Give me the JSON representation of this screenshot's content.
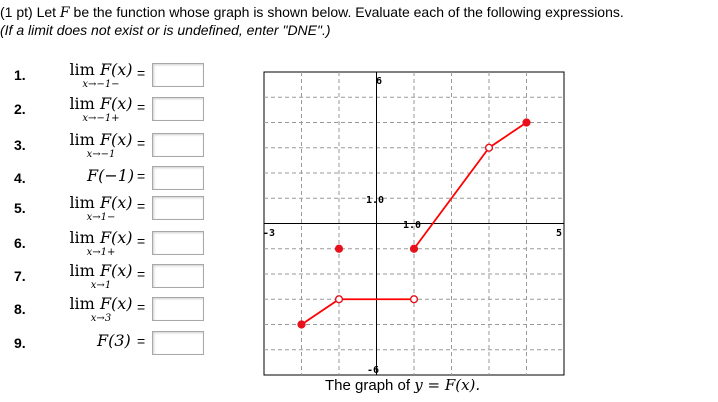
{
  "header": {
    "line1_prefix": "(1 pt) Let",
    "line1_var": "F",
    "line1_suffix": "be the function whose graph is shown below. Evaluate each of the following expressions.",
    "line2": "(If a limit does not exist or is undefined, enter \"DNE\".)"
  },
  "problems": [
    {
      "num": "1.",
      "lim": "lim",
      "func": "F(x)",
      "sub": "x→−1−",
      "eq": "=",
      "answer": ""
    },
    {
      "num": "2.",
      "lim": "lim",
      "func": "F(x)",
      "sub": "x→−1+",
      "eq": "=",
      "answer": ""
    },
    {
      "num": "3.",
      "lim": "lim",
      "func": "F(x)",
      "sub": "x→−1",
      "eq": "=",
      "answer": ""
    },
    {
      "num": "4.",
      "func": "F(−1)",
      "eq": "=",
      "answer": ""
    },
    {
      "num": "5.",
      "lim": "lim",
      "func": "F(x)",
      "sub": "x→1−",
      "eq": "=",
      "answer": ""
    },
    {
      "num": "6.",
      "lim": "lim",
      "func": "F(x)",
      "sub": "x→1+",
      "eq": "=",
      "answer": ""
    },
    {
      "num": "7.",
      "lim": "lim",
      "func": "F(x)",
      "sub": "x→1",
      "eq": "=",
      "answer": ""
    },
    {
      "num": "8.",
      "lim": "lim",
      "func": "F(x)",
      "sub": "x→3",
      "eq": "=",
      "answer": ""
    },
    {
      "num": "9.",
      "func": "F(3)",
      "eq": "=",
      "answer": ""
    }
  ],
  "graph": {
    "caption_prefix": "The graph of",
    "caption_math": "y = F(x).",
    "labels": {
      "xmin": "-3",
      "xmax": "5",
      "ymax": "6",
      "ymin": "-6",
      "ylab": "1.0",
      "xlab": "1.0"
    },
    "line_color": "#ff0000",
    "point_color": "#e8101a"
  },
  "chart_data": {
    "type": "line",
    "title": "",
    "xlim": [
      -3,
      5
    ],
    "ylim": [
      -6,
      6
    ],
    "grid": true,
    "segments": [
      {
        "from": [
          -2,
          -4
        ],
        "to": [
          -1,
          -3
        ]
      },
      {
        "from": [
          -1,
          -3
        ],
        "to": [
          1,
          -3
        ]
      },
      {
        "from": [
          1,
          -1
        ],
        "to": [
          3,
          3
        ]
      },
      {
        "from": [
          3,
          3
        ],
        "to": [
          4,
          4
        ]
      }
    ],
    "points": [
      {
        "x": -2,
        "y": -4,
        "style": "filled"
      },
      {
        "x": -1,
        "y": -3,
        "style": "open"
      },
      {
        "x": -1,
        "y": -1,
        "style": "filled"
      },
      {
        "x": 1,
        "y": -3,
        "style": "open"
      },
      {
        "x": 1,
        "y": -1,
        "style": "filled"
      },
      {
        "x": 3,
        "y": 3,
        "style": "open"
      },
      {
        "x": 4,
        "y": 4,
        "style": "filled"
      }
    ]
  }
}
